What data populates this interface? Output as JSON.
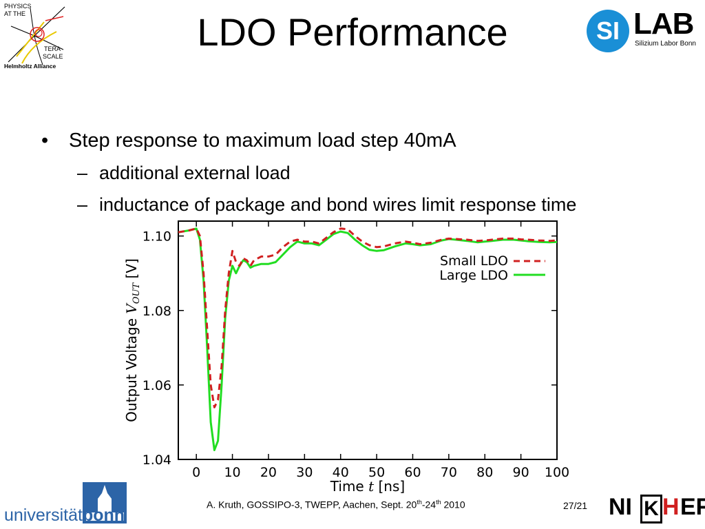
{
  "slide": {
    "title": "LDO Performance",
    "bullet": "Step response to maximum load step 40mA",
    "subbullets": [
      "additional external load",
      "inductance of package and bond wires limit response time"
    ],
    "bullet_symbol": "•",
    "dash_symbol": "–"
  },
  "logos": {
    "terascale": {
      "line1": "PHYSICS",
      "line2": "AT THE",
      "line3": "TERA",
      "line4": "SCALE",
      "line5": "Helmholtz Alliance"
    },
    "silab": {
      "circle": "SI",
      "word": "LAB",
      "subtitle": "Silizium Labor Bonn",
      "color": "#1a8fd6"
    },
    "bonn": {
      "prefix": "universität",
      "suffix": "bonn",
      "color": "#2c64a7"
    },
    "nikhef": {
      "left": "NI",
      "box": "K",
      "red": "H",
      "right": "EF"
    }
  },
  "footer": {
    "citation_pre": "A. Kruth, GOSSIPO-3, TWEPP, Aachen, Sept. 20",
    "sup1": "th",
    "mid": "-24",
    "sup2": "th",
    "post": " 2010",
    "page": "27/21"
  },
  "chart_data": {
    "type": "line",
    "xlabel_prefix": "Time ",
    "xlabel_var": "t",
    "xlabel_suffix": " [ns]",
    "ylabel_prefix": "Output Voltage ",
    "ylabel_var": "V",
    "ylabel_sub": "OUT",
    "ylabel_suffix": " [V]",
    "xlim": [
      -5,
      100
    ],
    "ylim": [
      1.04,
      1.104
    ],
    "xticks": [
      0,
      10,
      20,
      30,
      40,
      50,
      60,
      70,
      80,
      90,
      100
    ],
    "yticks": [
      1.04,
      1.06,
      1.08,
      1.1
    ],
    "ytick_labels": [
      "1.04",
      "1.06",
      "1.08",
      "1.10"
    ],
    "legend_position": "top-right",
    "grid": false,
    "series": [
      {
        "name": "Small LDO",
        "color": "#d02020",
        "dash": true,
        "x": [
          -5,
          -2,
          0,
          1,
          2,
          3,
          4,
          5,
          6,
          7,
          8,
          9,
          10,
          11,
          12,
          13,
          14,
          15,
          16,
          18,
          20,
          22,
          24,
          26,
          28,
          30,
          32,
          34,
          36,
          38,
          40,
          42,
          44,
          46,
          48,
          50,
          52,
          55,
          58,
          60,
          62,
          65,
          68,
          70,
          72,
          75,
          78,
          80,
          82,
          85,
          88,
          90,
          92,
          95,
          98,
          100
        ],
        "y": [
          1.101,
          1.1015,
          1.102,
          1.1,
          1.09,
          1.075,
          1.06,
          1.054,
          1.056,
          1.065,
          1.08,
          1.09,
          1.096,
          1.093,
          1.092,
          1.094,
          1.0935,
          1.092,
          1.0935,
          1.0945,
          1.0945,
          1.095,
          1.097,
          1.0985,
          1.099,
          1.0985,
          1.0985,
          1.098,
          1.0995,
          1.101,
          1.102,
          1.1018,
          1.1,
          1.0985,
          1.0975,
          1.097,
          1.0972,
          1.098,
          1.0985,
          1.0982,
          1.0978,
          1.0982,
          1.099,
          1.0993,
          1.0992,
          1.099,
          1.0987,
          1.0988,
          1.099,
          1.0993,
          1.0993,
          1.0991,
          1.099,
          1.0988,
          1.0987,
          1.0988
        ]
      },
      {
        "name": "Large LDO",
        "color": "#22dd22",
        "dash": false,
        "x": [
          -5,
          -2,
          0,
          1,
          2,
          3,
          4,
          5,
          6,
          7,
          8,
          9,
          10,
          11,
          12,
          13,
          14,
          15,
          16,
          18,
          20,
          22,
          24,
          26,
          28,
          30,
          32,
          34,
          36,
          38,
          40,
          42,
          44,
          46,
          48,
          50,
          52,
          55,
          58,
          60,
          62,
          65,
          68,
          70,
          72,
          75,
          78,
          80,
          82,
          85,
          88,
          90,
          92,
          95,
          98,
          100
        ],
        "y": [
          1.101,
          1.1015,
          1.102,
          1.099,
          1.088,
          1.07,
          1.05,
          1.0425,
          1.045,
          1.06,
          1.078,
          1.088,
          1.092,
          1.09,
          1.092,
          1.0935,
          1.093,
          1.0915,
          1.092,
          1.0925,
          1.0925,
          1.093,
          1.095,
          1.097,
          1.0985,
          1.098,
          1.098,
          1.0975,
          1.099,
          1.1005,
          1.1012,
          1.1008,
          1.099,
          1.0975,
          1.0963,
          1.096,
          1.0962,
          1.0972,
          1.098,
          1.0978,
          1.0975,
          1.0978,
          1.0988,
          1.0992,
          1.099,
          1.0987,
          1.0983,
          1.0985,
          1.0987,
          1.099,
          1.099,
          1.0988,
          1.0986,
          1.0984,
          1.0983,
          1.0984
        ]
      }
    ]
  }
}
